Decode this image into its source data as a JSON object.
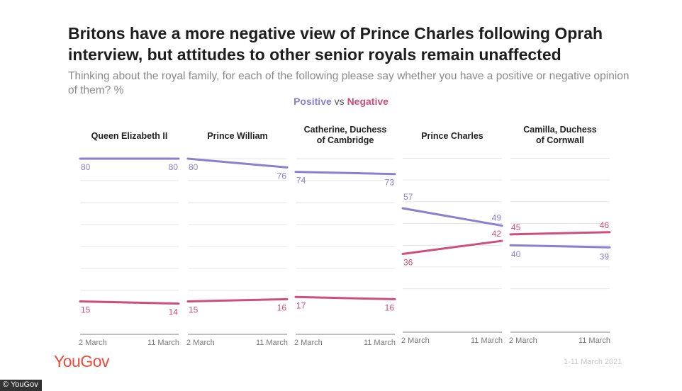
{
  "title": "Britons have a more negative view of Prince Charles following Oprah interview, but attitudes to other senior royals remain unaffected",
  "subtitle": "Thinking about the royal family, for each of the following please say whether you have a positive or negative opinion of them? %",
  "legend": {
    "positive": "Positive",
    "vs": "vs",
    "negative": "Negative"
  },
  "colors": {
    "positive": "#8b7fd0",
    "negative": "#cc4f7e",
    "grid": "#e6e6e6",
    "axis": "#999999"
  },
  "chart_data": {
    "type": "line",
    "x": [
      "2 March",
      "11 March"
    ],
    "panels": [
      {
        "name_lines": [
          "Queen Elizabeth II"
        ],
        "series": [
          {
            "name": "Positive",
            "values": [
              80,
              80
            ]
          },
          {
            "name": "Negative",
            "values": [
              15,
              14
            ]
          }
        ]
      },
      {
        "name_lines": [
          "Prince William"
        ],
        "series": [
          {
            "name": "Positive",
            "values": [
              80,
              76
            ]
          },
          {
            "name": "Negative",
            "values": [
              15,
              16
            ]
          }
        ]
      },
      {
        "name_lines": [
          "Catherine, Duchess",
          "of Cambridge"
        ],
        "series": [
          {
            "name": "Positive",
            "values": [
              74,
              73
            ]
          },
          {
            "name": "Negative",
            "values": [
              17,
              16
            ]
          }
        ]
      },
      {
        "name_lines": [
          "Prince Charles"
        ],
        "series": [
          {
            "name": "Positive",
            "values": [
              57,
              49
            ]
          },
          {
            "name": "Negative",
            "values": [
              36,
              42
            ]
          }
        ]
      },
      {
        "name_lines": [
          "Camilla, Duchess",
          "of Cornwall"
        ],
        "series": [
          {
            "name": "Positive",
            "values": [
              40,
              39
            ]
          },
          {
            "name": "Negative",
            "values": [
              45,
              46
            ]
          }
        ]
      }
    ]
  },
  "footer": {
    "logo": "YouGov",
    "date_range": "1-11 March 2021",
    "copyright": "© YouGov"
  }
}
